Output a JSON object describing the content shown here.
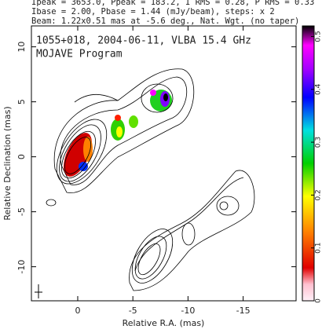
{
  "chart_data": {
    "type": "image",
    "header": [
      "Ipeak = 3653.0, Ppeak = 183.2, I RMS = 0.28, P RMS = 0.33",
      "Ibase = 2.00, Pbase = 1.44 (mJy/beam), steps: x 2",
      "Beam: 1.22x0.51 mas at -5.6 deg., Nat. Wgt. (no taper)"
    ],
    "title": "1055+018, 2004-06-11, VLBA 15.4 GHz",
    "subtitle": "MOJAVE Program",
    "x_label": "Relative R.A. (mas)",
    "y_label": "Relative Declination (mas)",
    "xlim": [
      4.2,
      -19.8
    ],
    "xticks": [
      0,
      -5,
      -10,
      -15
    ],
    "ylim": [
      -13.1,
      11.9
    ],
    "yticks": [
      -10,
      -5,
      0,
      5,
      10
    ],
    "colorbar_lim": [
      0,
      0.52
    ],
    "colorbar_ticks": [
      0,
      0.1,
      0.2,
      0.3,
      0.4,
      0.5
    ]
  }
}
